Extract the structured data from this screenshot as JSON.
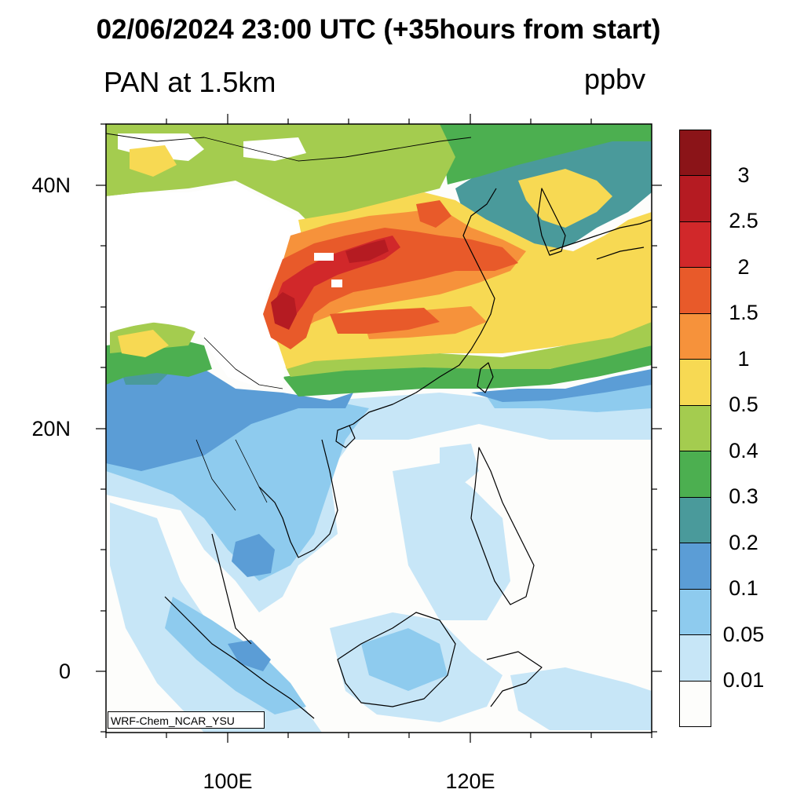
{
  "title": "02/06/2024 23:00 UTC (+35hours from start)",
  "variable_label": "PAN at 1.5km",
  "units_label": "ppbv",
  "credit": "WRF-Chem_NCAR_YSU",
  "lat_ticks": [
    {
      "label": "40N",
      "value": 40
    },
    {
      "label": "20N",
      "value": 20
    },
    {
      "label": "0",
      "value": 0
    }
  ],
  "lon_ticks": [
    {
      "label": "100E",
      "value": 100
    },
    {
      "label": "120E",
      "value": 120
    }
  ],
  "colorbar": {
    "levels": [
      "0.01",
      "0.05",
      "0.1",
      "0.2",
      "0.3",
      "0.4",
      "0.5",
      "1",
      "1.5",
      "2",
      "2.5",
      "3"
    ],
    "colors": [
      "#fdfdfb",
      "#c7e6f7",
      "#8ecbee",
      "#5b9dd6",
      "#4a9a9b",
      "#4caf50",
      "#a4cc4f",
      "#f7d953",
      "#f6923b",
      "#e85a2a",
      "#d1282a",
      "#b51b22",
      "#8b1418"
    ]
  },
  "colors": {
    "ocean_low": "#fdfdfb",
    "coastline": "#000000"
  }
}
